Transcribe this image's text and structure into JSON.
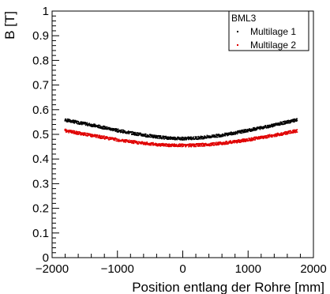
{
  "chart_data": {
    "type": "scatter",
    "title": "",
    "xlabel": "Position entlang der Rohre [mm]",
    "ylabel": "B [T]",
    "xlim": [
      -2000,
      2000
    ],
    "ylim": [
      0,
      1
    ],
    "x_ticks": [
      -2000,
      -1000,
      0,
      1000,
      2000
    ],
    "x_tick_labels": [
      "−2000",
      "−1000",
      "0",
      "1000",
      "2000"
    ],
    "y_ticks": [
      0,
      0.1,
      0.2,
      0.3,
      0.4,
      0.5,
      0.6,
      0.7,
      0.8,
      0.9,
      1
    ],
    "y_tick_labels": [
      "0",
      "0.1",
      "0.2",
      "0.3",
      "0.4",
      "0.5",
      "0.6",
      "0.7",
      "0.8",
      "0.9",
      "1"
    ],
    "grid": false,
    "legend": {
      "title": "BML3",
      "position": "top-right"
    },
    "series": [
      {
        "name": "Multilage 1",
        "color": "#000000",
        "x": [
          -1800,
          -1600,
          -1400,
          -1200,
          -1000,
          -800,
          -600,
          -400,
          -200,
          0,
          200,
          400,
          600,
          800,
          1000,
          1200,
          1400,
          1600,
          1750
        ],
        "y": [
          0.558,
          0.548,
          0.538,
          0.527,
          0.516,
          0.506,
          0.497,
          0.49,
          0.485,
          0.483,
          0.485,
          0.49,
          0.497,
          0.506,
          0.516,
          0.527,
          0.538,
          0.55,
          0.558
        ]
      },
      {
        "name": "Multilage 2",
        "color": "#e00000",
        "x": [
          -1800,
          -1600,
          -1400,
          -1200,
          -1000,
          -800,
          -600,
          -400,
          -200,
          0,
          200,
          400,
          600,
          800,
          1000,
          1200,
          1400,
          1600,
          1750
        ],
        "y": [
          0.515,
          0.505,
          0.496,
          0.487,
          0.478,
          0.47,
          0.464,
          0.459,
          0.456,
          0.455,
          0.456,
          0.459,
          0.464,
          0.47,
          0.478,
          0.487,
          0.496,
          0.506,
          0.515
        ]
      }
    ]
  }
}
